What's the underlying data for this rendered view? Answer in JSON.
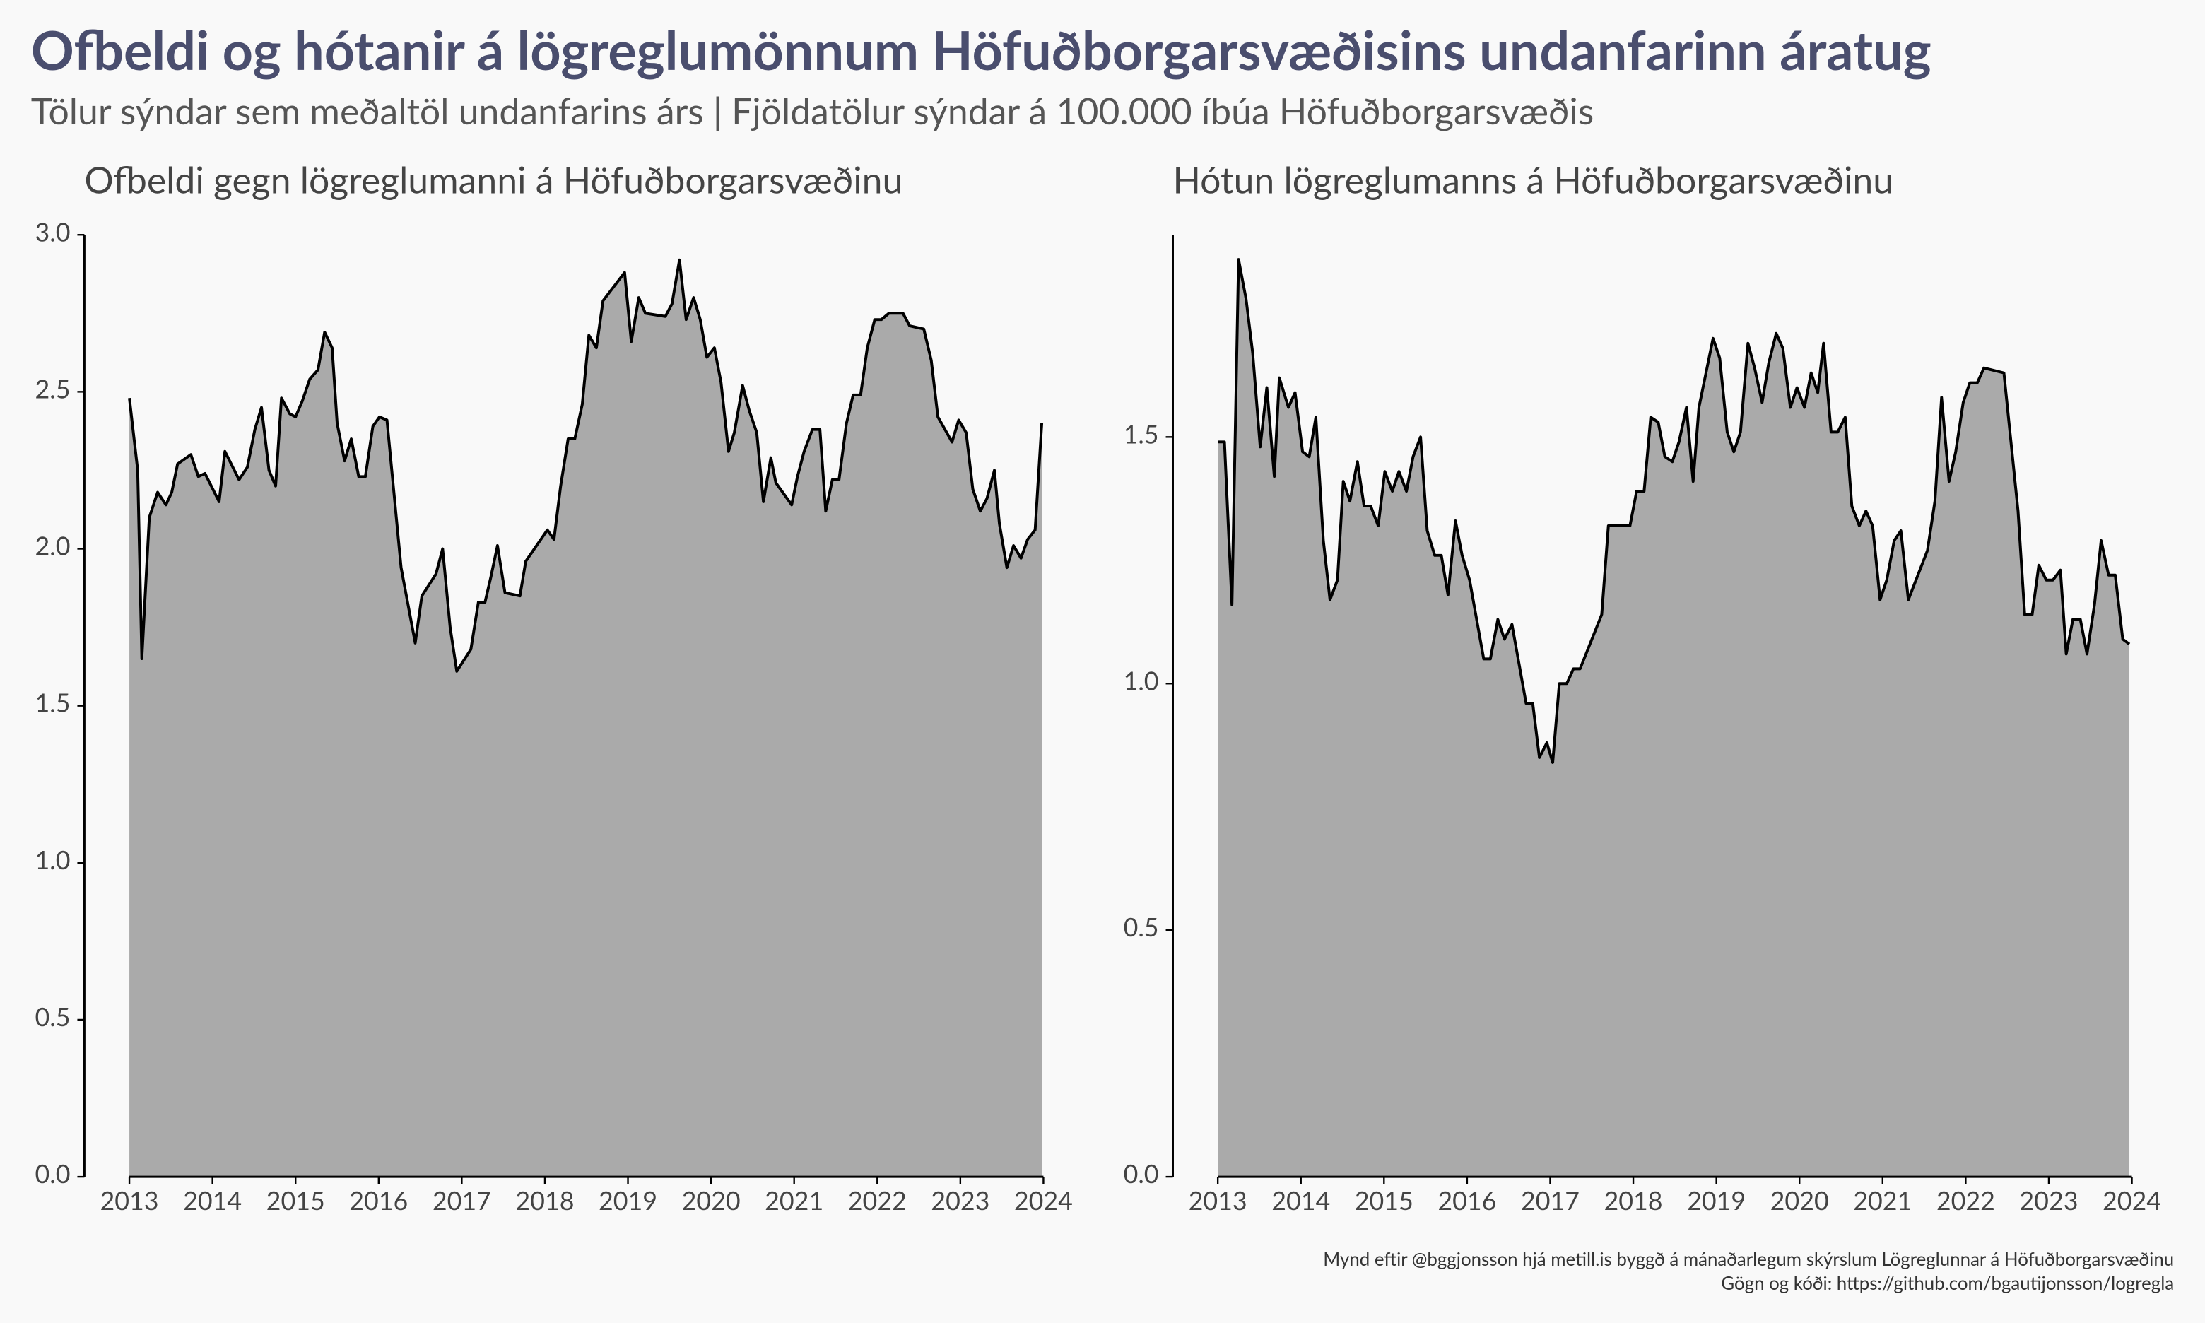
{
  "title": "Ofbeldi og hótanir á lögreglumönnum Höfuðborgarsvæðisins undanfarinn áratug",
  "subtitle": "Tölur sýndar sem meðaltöl undanfarins árs | Fjöldatölur sýndar á 100.000 íbúa Höfuðborgarsvæðis",
  "caption": [
    "Mynd eftir @bggjonsson hjá metill.is byggð á mánaðarlegum skýrslum Lögreglunnar á Höfuðborgarsvæðinu",
    "Gögn og kóði: https://github.com/bgautijonsson/logregla"
  ],
  "chart_data": [
    {
      "type": "area",
      "title": "Ofbeldi gegn lögreglumanni á Höfuðborgarsvæðinu",
      "color": "#aaaaaa",
      "line_color": "#000000",
      "xlim": [
        2013,
        2024
      ],
      "xticks": [
        2013,
        2014,
        2015,
        2016,
        2017,
        2018,
        2019,
        2020,
        2021,
        2022,
        2023,
        2024
      ],
      "ylim": [
        0,
        3
      ],
      "yticks": [
        {
          "value": 0,
          "label": "0.0"
        },
        0.5,
        {
          "value": 1,
          "label": "1.0"
        },
        1.5,
        {
          "value": 2,
          "label": "2.0"
        },
        2.5,
        {
          "value": 3,
          "label": "3.0"
        }
      ],
      "x": [
        2013.0,
        2013.1,
        2013.15,
        2013.24,
        2013.34,
        2013.44,
        2013.51,
        2013.58,
        2013.74,
        2013.83,
        2013.91,
        2014.08,
        2014.15,
        2014.32,
        2014.42,
        2014.51,
        2014.59,
        2014.68,
        2014.76,
        2014.83,
        2014.93,
        2015.0,
        2015.08,
        2015.17,
        2015.27,
        2015.35,
        2015.44,
        2015.5,
        2015.59,
        2015.67,
        2015.76,
        2015.84,
        2015.93,
        2016.01,
        2016.1,
        2016.27,
        2016.44,
        2016.52,
        2016.69,
        2016.77,
        2016.86,
        2016.94,
        2017.11,
        2017.2,
        2017.28,
        2017.35,
        2017.43,
        2017.52,
        2017.7,
        2017.77,
        2018.03,
        2018.11,
        2018.19,
        2018.28,
        2018.36,
        2018.45,
        2018.53,
        2018.62,
        2018.7,
        2018.96,
        2019.04,
        2019.13,
        2019.21,
        2019.45,
        2019.53,
        2019.62,
        2019.7,
        2019.79,
        2019.87,
        2019.95,
        2020.04,
        2020.12,
        2020.21,
        2020.28,
        2020.38,
        2020.46,
        2020.55,
        2020.63,
        2020.72,
        2020.78,
        2020.97,
        2021.04,
        2021.12,
        2021.22,
        2021.31,
        2021.38,
        2021.46,
        2021.54,
        2021.63,
        2021.71,
        2021.8,
        2021.88,
        2021.97,
        2022.05,
        2022.14,
        2022.31,
        2022.39,
        2022.56,
        2022.65,
        2022.73,
        2022.9,
        2022.98,
        2023.07,
        2023.15,
        2023.24,
        2023.32,
        2023.41,
        2023.47,
        2023.56,
        2023.64,
        2023.73,
        2023.81,
        2023.9,
        2023.98
      ],
      "values": [
        2.48,
        2.25,
        1.65,
        2.1,
        2.18,
        2.14,
        2.18,
        2.27,
        2.3,
        2.23,
        2.24,
        2.15,
        2.31,
        2.22,
        2.26,
        2.38,
        2.45,
        2.25,
        2.2,
        2.48,
        2.43,
        2.42,
        2.47,
        2.54,
        2.57,
        2.69,
        2.64,
        2.4,
        2.28,
        2.35,
        2.23,
        2.23,
        2.39,
        2.42,
        2.41,
        1.94,
        1.7,
        1.85,
        1.92,
        2.0,
        1.75,
        1.61,
        1.68,
        1.83,
        1.83,
        1.91,
        2.01,
        1.86,
        1.85,
        1.96,
        2.06,
        2.03,
        2.2,
        2.35,
        2.35,
        2.46,
        2.68,
        2.64,
        2.79,
        2.88,
        2.66,
        2.8,
        2.75,
        2.74,
        2.78,
        2.92,
        2.73,
        2.8,
        2.73,
        2.61,
        2.64,
        2.53,
        2.31,
        2.37,
        2.52,
        2.44,
        2.37,
        2.15,
        2.29,
        2.21,
        2.14,
        2.23,
        2.31,
        2.38,
        2.38,
        2.12,
        2.22,
        2.22,
        2.4,
        2.49,
        2.49,
        2.64,
        2.73,
        2.73,
        2.75,
        2.75,
        2.71,
        2.7,
        2.6,
        2.42,
        2.34,
        2.41,
        2.37,
        2.19,
        2.12,
        2.16,
        2.25,
        2.08,
        1.94,
        2.01,
        1.97,
        2.03,
        2.06,
        2.4
      ]
    },
    {
      "type": "area",
      "title": "Hótun lögreglumanns á Höfuðborgarsvæðinu",
      "color": "#aaaaaa",
      "line_color": "#000000",
      "xlim": [
        2013,
        2024
      ],
      "xticks": [
        2013,
        2014,
        2015,
        2016,
        2017,
        2018,
        2019,
        2020,
        2021,
        2022,
        2023,
        2024
      ],
      "ylim": [
        0,
        1.91
      ],
      "yticks": [
        {
          "value": 0,
          "label": "0.0"
        },
        0.5,
        {
          "value": 1,
          "label": "1.0"
        },
        1.5
      ],
      "x": [
        2013.0,
        2013.08,
        2013.17,
        2013.25,
        2013.34,
        2013.42,
        2013.51,
        2013.59,
        2013.68,
        2013.74,
        2013.85,
        2013.93,
        2014.02,
        2014.1,
        2014.18,
        2014.27,
        2014.35,
        2014.44,
        2014.51,
        2014.59,
        2014.68,
        2014.76,
        2014.84,
        2014.93,
        2015.01,
        2015.1,
        2015.18,
        2015.27,
        2015.35,
        2015.44,
        2015.52,
        2015.61,
        2015.69,
        2015.77,
        2015.86,
        2015.94,
        2016.03,
        2016.2,
        2016.28,
        2016.37,
        2016.45,
        2016.54,
        2016.71,
        2016.79,
        2016.87,
        2016.96,
        2017.03,
        2017.11,
        2017.2,
        2017.28,
        2017.36,
        2017.62,
        2017.7,
        2017.96,
        2018.04,
        2018.13,
        2018.21,
        2018.3,
        2018.38,
        2018.47,
        2018.55,
        2018.64,
        2018.72,
        2018.79,
        2018.96,
        2019.04,
        2019.13,
        2019.21,
        2019.29,
        2019.38,
        2019.46,
        2019.55,
        2019.63,
        2019.72,
        2019.8,
        2019.89,
        2019.97,
        2020.06,
        2020.14,
        2020.22,
        2020.29,
        2020.38,
        2020.46,
        2020.55,
        2020.63,
        2020.72,
        2020.8,
        2020.88,
        2020.97,
        2021.05,
        2021.14,
        2021.22,
        2021.31,
        2021.54,
        2021.63,
        2021.71,
        2021.8,
        2021.88,
        2021.97,
        2022.05,
        2022.14,
        2022.22,
        2022.46,
        2022.63,
        2022.71,
        2022.8,
        2022.88,
        2022.97,
        2023.05,
        2023.14,
        2023.21,
        2023.29,
        2023.38,
        2023.46,
        2023.55,
        2023.63,
        2023.72,
        2023.8,
        2023.89,
        2023.97
      ],
      "values": [
        1.49,
        1.49,
        1.16,
        1.86,
        1.78,
        1.67,
        1.48,
        1.6,
        1.42,
        1.62,
        1.56,
        1.59,
        1.47,
        1.46,
        1.54,
        1.29,
        1.17,
        1.21,
        1.41,
        1.37,
        1.45,
        1.36,
        1.36,
        1.32,
        1.43,
        1.39,
        1.43,
        1.39,
        1.46,
        1.5,
        1.31,
        1.26,
        1.26,
        1.18,
        1.33,
        1.26,
        1.21,
        1.05,
        1.05,
        1.13,
        1.09,
        1.12,
        0.96,
        0.96,
        0.85,
        0.88,
        0.84,
        1.0,
        1.0,
        1.03,
        1.03,
        1.14,
        1.32,
        1.32,
        1.39,
        1.39,
        1.54,
        1.53,
        1.46,
        1.45,
        1.49,
        1.56,
        1.41,
        1.56,
        1.7,
        1.66,
        1.51,
        1.47,
        1.51,
        1.69,
        1.64,
        1.57,
        1.65,
        1.71,
        1.68,
        1.56,
        1.6,
        1.56,
        1.63,
        1.59,
        1.69,
        1.51,
        1.51,
        1.54,
        1.36,
        1.32,
        1.35,
        1.32,
        1.17,
        1.21,
        1.29,
        1.31,
        1.17,
        1.27,
        1.37,
        1.58,
        1.41,
        1.47,
        1.57,
        1.61,
        1.61,
        1.64,
        1.63,
        1.35,
        1.14,
        1.14,
        1.24,
        1.21,
        1.21,
        1.23,
        1.06,
        1.13,
        1.13,
        1.06,
        1.16,
        1.29,
        1.22,
        1.22,
        1.09,
        1.08
      ]
    }
  ]
}
